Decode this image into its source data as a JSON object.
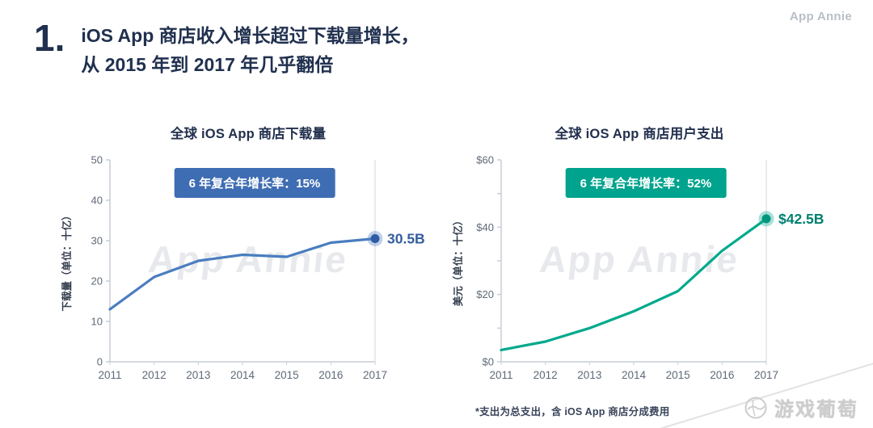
{
  "page": {
    "slide_number": "1.",
    "title_line1": "iOS App 商店收入增长超过下载量增长，",
    "title_line2": "从 2015 年到 2017 年几乎翻倍",
    "brand": "App Annie",
    "watermark": "App Annie",
    "footnote": "*支出为总支出，含 iOS App 商店分成费用",
    "corner_logo": "游戏葡萄"
  },
  "colors": {
    "title_navy": "#20304f",
    "axis_line": "#c9ced6",
    "axis_text": "#5f6a78",
    "gridline_2017": "#e2e5e9",
    "brand_gray": "#b9bfc7"
  },
  "chart_data": [
    {
      "type": "line",
      "title": "全球 iOS App 商店下载量",
      "ylabel": "下载量（单位：十亿）",
      "badge": "6 年复合年增长率：15%",
      "badge_color": "#3f6db3",
      "x": [
        "2011",
        "2012",
        "2013",
        "2014",
        "2015",
        "2016",
        "2017"
      ],
      "values": [
        13,
        21,
        25,
        26.5,
        26,
        29.5,
        30.5
      ],
      "end_label": "30.5B",
      "color": "#4a7dc0",
      "marker_color": "#2e5ca6",
      "label_color": "#345d9d",
      "ylim": [
        0,
        50
      ],
      "yticks": [
        0,
        10,
        20,
        30,
        40,
        50
      ],
      "ytick_labels": [
        "0",
        "10",
        "20",
        "30",
        "40",
        "50"
      ],
      "grid": false,
      "legend": "none"
    },
    {
      "type": "line",
      "title": "全球 iOS App 商店用户支出",
      "ylabel": "美元（单位：十亿）",
      "badge": "6 年复合年增长率：52%",
      "badge_color": "#00a38d",
      "x": [
        "2011",
        "2012",
        "2013",
        "2014",
        "2015",
        "2016",
        "2017"
      ],
      "values": [
        3.5,
        6,
        10,
        15,
        21,
        33,
        42.5
      ],
      "end_label": "$42.5B",
      "color": "#00a98c",
      "marker_color": "#00967e",
      "label_color": "#00806f",
      "ylim": [
        0,
        60
      ],
      "yticks": [
        0,
        10,
        20,
        30,
        40,
        50,
        60
      ],
      "ytick_labels": [
        "$0",
        "",
        "$20",
        "",
        "$40",
        "",
        "$60"
      ],
      "grid": false,
      "legend": "none"
    }
  ]
}
